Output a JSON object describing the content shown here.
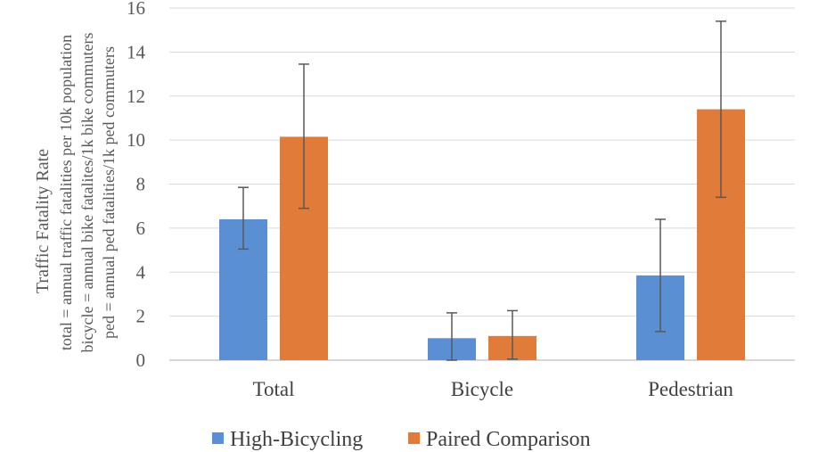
{
  "chart_data": {
    "type": "bar",
    "categories": [
      "Total",
      "Bicycle",
      "Pedestrian"
    ],
    "series": [
      {
        "name": "High-Bicycling",
        "color": "#5b8fd4",
        "values": [
          6.4,
          1.0,
          3.85
        ],
        "error_low": [
          5.05,
          0.0,
          1.3
        ],
        "error_high": [
          7.85,
          2.15,
          6.4
        ]
      },
      {
        "name": "Paired Comparison",
        "color": "#e07b39",
        "values": [
          10.15,
          1.1,
          11.4
        ],
        "error_low": [
          6.9,
          0.05,
          7.4
        ],
        "error_high": [
          13.45,
          2.25,
          15.4
        ]
      }
    ],
    "ylabel": {
      "title": "Traffic Fatality Rate",
      "lines": [
        "total = annual traffic fatalities per 10k population",
        "bicycle = annual bike fatalites/1k bike commuters",
        "ped = annual ped fatalities/1k ped commuters"
      ]
    },
    "yticks": [
      0,
      2,
      4,
      6,
      8,
      10,
      12,
      14,
      16
    ],
    "ylim": [
      0,
      16
    ],
    "grid": true,
    "legend_position": "bottom",
    "colors": {
      "grid": "#d9d9d9",
      "axis": "#bfbfbf",
      "error_bar": "#595959"
    }
  }
}
